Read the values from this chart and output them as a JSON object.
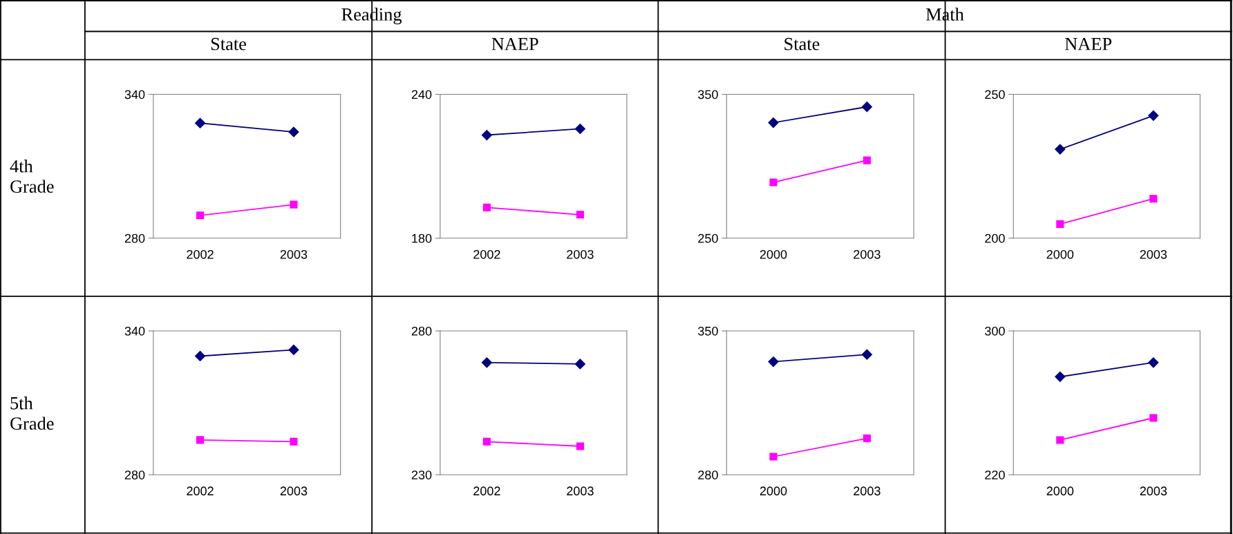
{
  "chart_data": [
    {
      "type": "other",
      "annotations": [
        "Reading",
        "Math",
        "State",
        "NAEP",
        "State",
        "NAEP",
        "4th Grade",
        "5th Grade"
      ]
    },
    {
      "type": "line",
      "categories": [
        "2002",
        "2003"
      ],
      "ylim": [
        280,
        340
      ],
      "yticks": [
        280,
        340
      ],
      "grid": false,
      "legend": false,
      "series": [
        {
          "color": "#000080",
          "marker": "diamond",
          "values": [
            328,
            324.3
          ]
        },
        {
          "color": "#ff00ff",
          "marker": "square",
          "values": [
            289.5,
            294
          ]
        }
      ]
    },
    {
      "type": "line",
      "categories": [
        "2002",
        "2003"
      ],
      "ylim": [
        180,
        240
      ],
      "yticks": [
        180,
        240
      ],
      "grid": false,
      "legend": false,
      "series": [
        {
          "color": "#000080",
          "marker": "diamond",
          "values": [
            223,
            225.6
          ]
        },
        {
          "color": "#ff00ff",
          "marker": "square",
          "values": [
            192.8,
            189.8
          ]
        }
      ]
    },
    {
      "type": "line",
      "categories": [
        "2000",
        "2003"
      ],
      "ylim": [
        250,
        350
      ],
      "yticks": [
        250,
        350
      ],
      "grid": false,
      "legend": false,
      "series": [
        {
          "color": "#000080",
          "marker": "diamond",
          "values": [
            330.3,
            341.3
          ]
        },
        {
          "color": "#ff00ff",
          "marker": "square",
          "values": [
            288.8,
            304.1
          ]
        }
      ]
    },
    {
      "type": "line",
      "categories": [
        "2000",
        "2003"
      ],
      "ylim": [
        200,
        250
      ],
      "yticks": [
        200,
        250
      ],
      "grid": false,
      "legend": false,
      "series": [
        {
          "color": "#000080",
          "marker": "diamond",
          "values": [
            230.9,
            242.6
          ]
        },
        {
          "color": "#ff00ff",
          "marker": "square",
          "values": [
            204.9,
            213.7
          ]
        }
      ]
    },
    {
      "type": "line",
      "categories": [
        "2002",
        "2003"
      ],
      "ylim": [
        280,
        340
      ],
      "yticks": [
        280,
        340
      ],
      "grid": false,
      "legend": false,
      "series": [
        {
          "color": "#000080",
          "marker": "diamond",
          "values": [
            329.5,
            332.1
          ]
        },
        {
          "color": "#ff00ff",
          "marker": "square",
          "values": [
            294.5,
            293.8
          ]
        }
      ]
    },
    {
      "type": "line",
      "categories": [
        "2002",
        "2003"
      ],
      "ylim": [
        230,
        280
      ],
      "yticks": [
        230,
        280
      ],
      "grid": false,
      "legend": false,
      "series": [
        {
          "color": "#000080",
          "marker": "diamond",
          "values": [
            269,
            268.5
          ]
        },
        {
          "color": "#ff00ff",
          "marker": "square",
          "values": [
            241.5,
            239.9
          ]
        }
      ]
    },
    {
      "type": "line",
      "categories": [
        "2000",
        "2003"
      ],
      "ylim": [
        280,
        350
      ],
      "yticks": [
        280,
        350
      ],
      "grid": false,
      "legend": false,
      "series": [
        {
          "color": "#000080",
          "marker": "diamond",
          "values": [
            335,
            338.5
          ]
        },
        {
          "color": "#ff00ff",
          "marker": "square",
          "values": [
            288.8,
            297.7
          ]
        }
      ]
    },
    {
      "type": "line",
      "categories": [
        "2000",
        "2003"
      ],
      "ylim": [
        220,
        300
      ],
      "yticks": [
        220,
        300
      ],
      "grid": false,
      "legend": false,
      "series": [
        {
          "color": "#000080",
          "marker": "diamond",
          "values": [
            274.5,
            282.4
          ]
        },
        {
          "color": "#ff00ff",
          "marker": "square",
          "values": [
            239.3,
            251.6
          ]
        }
      ]
    }
  ]
}
